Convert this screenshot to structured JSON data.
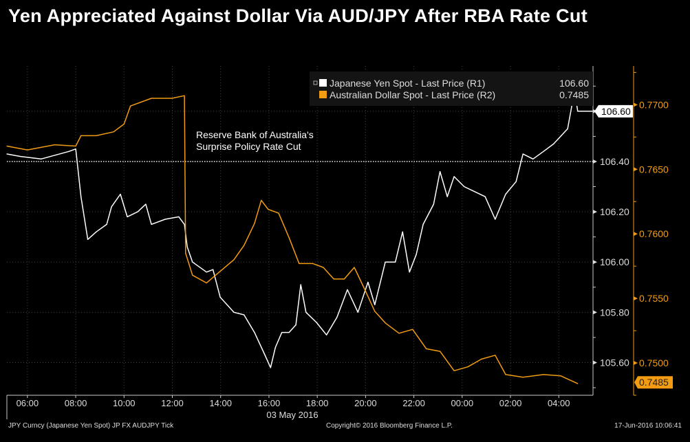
{
  "chart_data": {
    "type": "line",
    "title": "Yen Appreciated Against Dollar Via AUD/JPY After RBA Rate Cut",
    "xlabel": "03 May 2016",
    "x_ticks": [
      "06:00",
      "08:00",
      "10:00",
      "12:00",
      "14:00",
      "16:00",
      "18:00",
      "20:00",
      "22:00",
      "00:00",
      "02:00",
      "04:00"
    ],
    "xlim": [
      "03 May 05:09",
      "04 May 05:25"
    ],
    "grid": true,
    "legend_position": "top-right",
    "annotation": {
      "line1": "Reserve Bank of Australia's",
      "line2": "Surprise Policy Rate Cut"
    },
    "reference_line": {
      "axis": "left",
      "value": 106.4
    },
    "axes": {
      "left": {
        "ticks": [
          "106.60",
          "106.40",
          "106.20",
          "106.00",
          "105.80",
          "105.60"
        ],
        "ylim": [
          105.47,
          106.78
        ],
        "color": "#ffffff"
      },
      "right": {
        "ticks": [
          "0.7700",
          "0.7650",
          "0.7600",
          "0.7550",
          "0.7500"
        ],
        "ylim": [
          0.7475,
          0.773
        ],
        "color": "#f39c12"
      }
    },
    "series": [
      {
        "name": "Japanese Yen Spot - Last Price (R1)",
        "last": "106.60",
        "axis": "left",
        "color": "#ffffff",
        "points": [
          [
            "03 May 05:09",
            106.43
          ],
          [
            "03 May 05:43",
            106.42
          ],
          [
            "03 May 06:34",
            106.41
          ],
          [
            "03 May 07:43",
            106.44
          ],
          [
            "03 May 08:00",
            106.45
          ],
          [
            "03 May 08:13",
            106.26
          ],
          [
            "03 May 08:30",
            106.09
          ],
          [
            "03 May 08:51",
            106.12
          ],
          [
            "03 May 09:17",
            106.15
          ],
          [
            "03 May 09:29",
            106.22
          ],
          [
            "03 May 09:51",
            106.27
          ],
          [
            "03 May 10:08",
            106.18
          ],
          [
            "03 May 10:34",
            106.2
          ],
          [
            "03 May 10:54",
            106.23
          ],
          [
            "03 May 11:08",
            106.15
          ],
          [
            "03 May 11:42",
            106.17
          ],
          [
            "03 May 12:16",
            106.18
          ],
          [
            "03 May 12:30",
            106.15
          ],
          [
            "03 May 12:37",
            106.06
          ],
          [
            "03 May 12:50",
            106.0
          ],
          [
            "03 May 13:25",
            105.96
          ],
          [
            "03 May 13:41",
            105.97
          ],
          [
            "03 May 13:59",
            105.86
          ],
          [
            "03 May 14:33",
            105.8
          ],
          [
            "03 May 14:58",
            105.79
          ],
          [
            "03 May 15:24",
            105.72
          ],
          [
            "03 May 15:50",
            105.63
          ],
          [
            "03 May 16:04",
            105.58
          ],
          [
            "03 May 16:16",
            105.66
          ],
          [
            "03 May 16:32",
            105.72
          ],
          [
            "03 May 16:50",
            105.72
          ],
          [
            "03 May 17:07",
            105.75
          ],
          [
            "03 May 17:19",
            105.91
          ],
          [
            "03 May 17:32",
            105.8
          ],
          [
            "03 May 17:58",
            105.76
          ],
          [
            "03 May 18:23",
            105.71
          ],
          [
            "03 May 18:49",
            105.78
          ],
          [
            "03 May 19:15",
            105.89
          ],
          [
            "03 May 19:41",
            105.8
          ],
          [
            "03 May 20:06",
            105.92
          ],
          [
            "03 May 20:23",
            105.83
          ],
          [
            "03 May 20:49",
            106.0
          ],
          [
            "03 May 21:14",
            106.0
          ],
          [
            "03 May 21:32",
            106.12
          ],
          [
            "03 May 21:49",
            105.96
          ],
          [
            "03 May 22:06",
            106.03
          ],
          [
            "03 May 22:23",
            106.15
          ],
          [
            "03 May 22:49",
            106.23
          ],
          [
            "03 May 23:05",
            106.36
          ],
          [
            "03 May 23:23",
            106.26
          ],
          [
            "03 May 23:40",
            106.34
          ],
          [
            "04 May 00:05",
            106.3
          ],
          [
            "04 May 00:31",
            106.28
          ],
          [
            "04 May 00:57",
            106.26
          ],
          [
            "04 May 01:22",
            106.17
          ],
          [
            "04 May 01:48",
            106.27
          ],
          [
            "04 May 02:14",
            106.32
          ],
          [
            "04 May 02:31",
            106.43
          ],
          [
            "04 May 02:56",
            106.41
          ],
          [
            "04 May 03:22",
            106.44
          ],
          [
            "04 May 03:47",
            106.47
          ],
          [
            "04 May 04:22",
            106.53
          ],
          [
            "04 May 04:39",
            106.68
          ],
          [
            "04 May 04:47",
            106.6
          ],
          [
            "04 May 05:25",
            106.6
          ]
        ]
      },
      {
        "name": "Australian Dollar Spot - Last Price (R2)",
        "last": "0.7485",
        "axis": "right",
        "color": "#f39c12",
        "points": [
          [
            "03 May 05:09",
            0.7668
          ],
          [
            "03 May 06:00",
            0.7665
          ],
          [
            "03 May 07:08",
            0.7669
          ],
          [
            "03 May 08:00",
            0.7668
          ],
          [
            "03 May 08:13",
            0.7676
          ],
          [
            "03 May 08:51",
            0.7676
          ],
          [
            "03 May 09:34",
            0.7679
          ],
          [
            "03 May 10:00",
            0.7685
          ],
          [
            "03 May 10:16",
            0.7699
          ],
          [
            "03 May 11:08",
            0.7705
          ],
          [
            "03 May 11:59",
            0.7705
          ],
          [
            "03 May 12:30",
            0.7707
          ],
          [
            "03 May 12:33",
            0.7585
          ],
          [
            "03 May 12:50",
            0.7568
          ],
          [
            "03 May 13:25",
            0.7562
          ],
          [
            "03 May 13:59",
            0.7571
          ],
          [
            "03 May 14:33",
            0.758
          ],
          [
            "03 May 14:58",
            0.7591
          ],
          [
            "03 May 15:24",
            0.7608
          ],
          [
            "03 May 15:41",
            0.7626
          ],
          [
            "03 May 15:58",
            0.7619
          ],
          [
            "03 May 16:24",
            0.7616
          ],
          [
            "03 May 16:50",
            0.7597
          ],
          [
            "03 May 17:15",
            0.7577
          ],
          [
            "03 May 17:49",
            0.7577
          ],
          [
            "03 May 18:15",
            0.7574
          ],
          [
            "03 May 18:41",
            0.7565
          ],
          [
            "03 May 19:07",
            0.7565
          ],
          [
            "03 May 19:32",
            0.7574
          ],
          [
            "03 May 19:58",
            0.7557
          ],
          [
            "03 May 20:23",
            0.754
          ],
          [
            "03 May 20:49",
            0.7531
          ],
          [
            "03 May 21:23",
            0.7523
          ],
          [
            "03 May 21:57",
            0.7526
          ],
          [
            "03 May 22:31",
            0.7511
          ],
          [
            "03 May 23:05",
            0.7509
          ],
          [
            "03 May 23:40",
            0.7494
          ],
          [
            "04 May 00:14",
            0.7497
          ],
          [
            "04 May 00:48",
            0.7503
          ],
          [
            "04 May 01:22",
            0.7506
          ],
          [
            "04 May 01:48",
            0.7491
          ],
          [
            "04 May 02:31",
            0.7489
          ],
          [
            "04 May 03:22",
            0.7491
          ],
          [
            "04 May 04:05",
            0.749
          ],
          [
            "04 May 04:47",
            0.7484
          ]
        ]
      }
    ]
  },
  "footer": {
    "left": "JPY Curncy (Japanese Yen Spot) JP FX AUDJPY   Tick",
    "center": "Copyright© 2016 Bloomberg Finance L.P.",
    "right": "17-Jun-2016 10:06:41"
  }
}
